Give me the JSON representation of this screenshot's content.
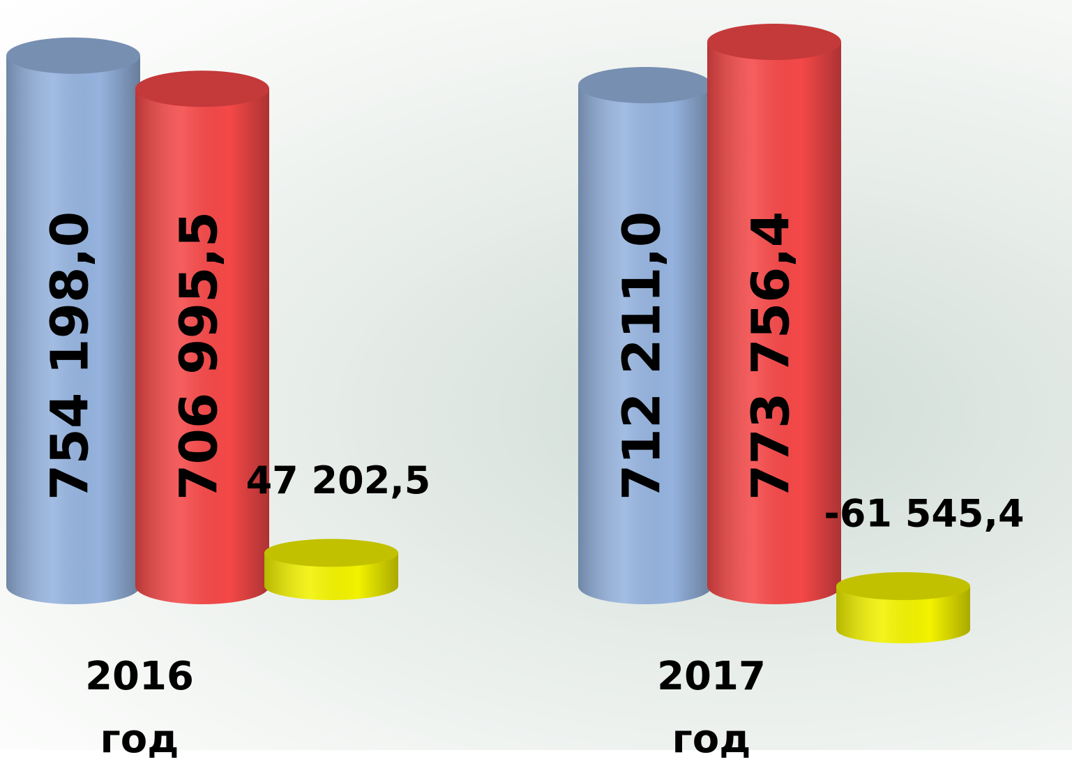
{
  "chart_data": {
    "type": "bar",
    "categories": [
      "2016\nгод",
      "2017\nгод"
    ],
    "series": [
      {
        "color": "#95b3de",
        "values": [
          754198.0,
          712211.0
        ],
        "value_labels": [
          "754 198,0",
          "712 211,0"
        ]
      },
      {
        "color": "#f54848",
        "values": [
          706995.5,
          773756.4
        ],
        "value_labels": [
          "706 995,5",
          "773 756,4"
        ]
      },
      {
        "color": "#f2f200",
        "values": [
          47202.5,
          -61545.4
        ],
        "value_labels": [
          "47 202,5",
          "-61 545,4"
        ]
      }
    ]
  }
}
